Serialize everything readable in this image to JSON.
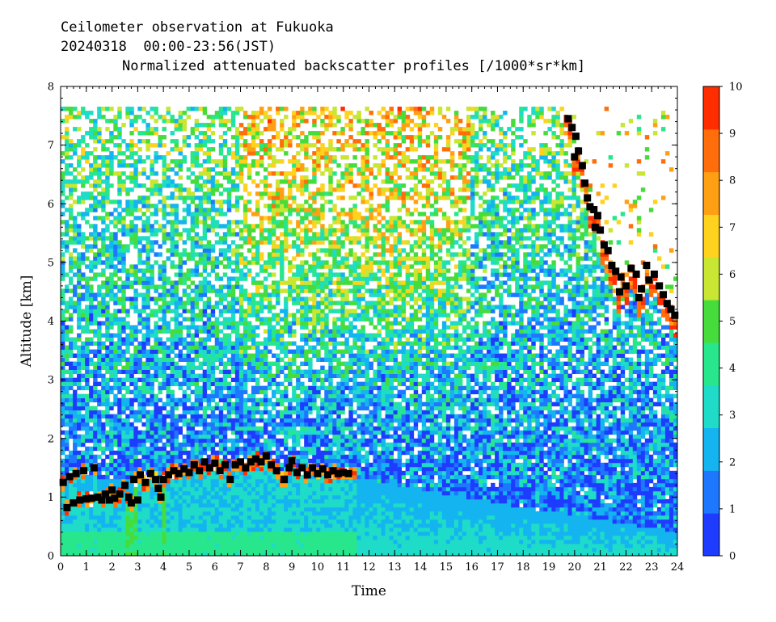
{
  "header": {
    "line1": "Ceilometer observation at Fukuoka",
    "line2": "20240318  00:00-23:56(JST)",
    "line3": "Normalized attenuated backscatter profiles [/1000*sr*km]"
  },
  "chart_data": {
    "type": "heatmap",
    "xlabel": "Time",
    "ylabel": "Altitude [km]",
    "xlim": [
      0,
      24
    ],
    "ylim": [
      0,
      8
    ],
    "x_ticks": [
      "0",
      "1",
      "2",
      "3",
      "4",
      "5",
      "6",
      "7",
      "8",
      "9",
      "10",
      "11",
      "12",
      "13",
      "14",
      "15",
      "16",
      "17",
      "18",
      "19",
      "20",
      "21",
      "22",
      "23",
      "24"
    ],
    "y_ticks": [
      "0",
      "1",
      "2",
      "3",
      "4",
      "5",
      "6",
      "7",
      "8"
    ],
    "colorbar": {
      "range": [
        0,
        10
      ],
      "ticks": [
        "0",
        "1",
        "2",
        "3",
        "4",
        "5",
        "6",
        "7",
        "8",
        "9",
        "10"
      ],
      "colors": [
        "#1e3cff",
        "#1e78ff",
        "#14b4f0",
        "#1edcc8",
        "#28e68c",
        "#46dc3c",
        "#c8e632",
        "#ffd21e",
        "#ffa014",
        "#ff6e0a",
        "#ff2d00"
      ]
    },
    "cloud_base_points": [
      {
        "x": 0.1,
        "y": 1.25
      },
      {
        "x": 0.25,
        "y": 0.82
      },
      {
        "x": 0.35,
        "y": 1.35
      },
      {
        "x": 0.5,
        "y": 0.9
      },
      {
        "x": 0.6,
        "y": 1.4
      },
      {
        "x": 0.75,
        "y": 0.95
      },
      {
        "x": 0.9,
        "y": 1.45
      },
      {
        "x": 1.0,
        "y": 0.97
      },
      {
        "x": 1.2,
        "y": 0.98
      },
      {
        "x": 1.3,
        "y": 1.5
      },
      {
        "x": 1.45,
        "y": 1.0
      },
      {
        "x": 1.6,
        "y": 0.95
      },
      {
        "x": 1.75,
        "y": 1.05
      },
      {
        "x": 1.9,
        "y": 0.95
      },
      {
        "x": 2.0,
        "y": 1.12
      },
      {
        "x": 2.1,
        "y": 0.98
      },
      {
        "x": 2.3,
        "y": 1.05
      },
      {
        "x": 2.5,
        "y": 1.2
      },
      {
        "x": 2.65,
        "y": 1.0
      },
      {
        "x": 2.75,
        "y": 0.9
      },
      {
        "x": 2.85,
        "y": 1.3
      },
      {
        "x": 3.0,
        "y": 0.95
      },
      {
        "x": 3.1,
        "y": 1.38
      },
      {
        "x": 3.3,
        "y": 1.25
      },
      {
        "x": 3.5,
        "y": 1.4
      },
      {
        "x": 3.7,
        "y": 1.3
      },
      {
        "x": 3.8,
        "y": 1.15
      },
      {
        "x": 3.9,
        "y": 1.0
      },
      {
        "x": 4.0,
        "y": 1.3
      },
      {
        "x": 4.2,
        "y": 1.38
      },
      {
        "x": 4.4,
        "y": 1.45
      },
      {
        "x": 4.6,
        "y": 1.4
      },
      {
        "x": 4.8,
        "y": 1.48
      },
      {
        "x": 5.0,
        "y": 1.42
      },
      {
        "x": 5.2,
        "y": 1.55
      },
      {
        "x": 5.4,
        "y": 1.45
      },
      {
        "x": 5.6,
        "y": 1.6
      },
      {
        "x": 5.8,
        "y": 1.5
      },
      {
        "x": 6.0,
        "y": 1.58
      },
      {
        "x": 6.2,
        "y": 1.45
      },
      {
        "x": 6.4,
        "y": 1.55
      },
      {
        "x": 6.6,
        "y": 1.3
      },
      {
        "x": 6.8,
        "y": 1.55
      },
      {
        "x": 7.0,
        "y": 1.6
      },
      {
        "x": 7.2,
        "y": 1.5
      },
      {
        "x": 7.4,
        "y": 1.6
      },
      {
        "x": 7.6,
        "y": 1.65
      },
      {
        "x": 7.8,
        "y": 1.6
      },
      {
        "x": 8.0,
        "y": 1.7
      },
      {
        "x": 8.2,
        "y": 1.55
      },
      {
        "x": 8.4,
        "y": 1.45
      },
      {
        "x": 8.7,
        "y": 1.3
      },
      {
        "x": 8.9,
        "y": 1.5
      },
      {
        "x": 9.0,
        "y": 1.62
      },
      {
        "x": 9.2,
        "y": 1.42
      },
      {
        "x": 9.4,
        "y": 1.5
      },
      {
        "x": 9.6,
        "y": 1.38
      },
      {
        "x": 9.8,
        "y": 1.5
      },
      {
        "x": 10.0,
        "y": 1.4
      },
      {
        "x": 10.2,
        "y": 1.48
      },
      {
        "x": 10.4,
        "y": 1.38
      },
      {
        "x": 10.6,
        "y": 1.45
      },
      {
        "x": 10.8,
        "y": 1.4
      },
      {
        "x": 11.0,
        "y": 1.42
      },
      {
        "x": 11.2,
        "y": 1.4
      },
      {
        "x": 19.75,
        "y": 7.45
      },
      {
        "x": 19.9,
        "y": 7.3
      },
      {
        "x": 20.05,
        "y": 7.15
      },
      {
        "x": 20.15,
        "y": 6.9
      },
      {
        "x": 20.0,
        "y": 6.8
      },
      {
        "x": 20.3,
        "y": 6.65
      },
      {
        "x": 20.4,
        "y": 6.35
      },
      {
        "x": 20.5,
        "y": 6.1
      },
      {
        "x": 20.6,
        "y": 5.95
      },
      {
        "x": 20.75,
        "y": 5.9
      },
      {
        "x": 20.9,
        "y": 5.8
      },
      {
        "x": 20.8,
        "y": 5.6
      },
      {
        "x": 21.0,
        "y": 5.55
      },
      {
        "x": 21.15,
        "y": 5.3
      },
      {
        "x": 21.3,
        "y": 5.2
      },
      {
        "x": 21.45,
        "y": 4.95
      },
      {
        "x": 21.6,
        "y": 4.85
      },
      {
        "x": 21.8,
        "y": 4.75
      },
      {
        "x": 22.0,
        "y": 4.6
      },
      {
        "x": 21.75,
        "y": 4.5
      },
      {
        "x": 22.2,
        "y": 4.9
      },
      {
        "x": 22.4,
        "y": 4.8
      },
      {
        "x": 22.6,
        "y": 4.55
      },
      {
        "x": 22.8,
        "y": 4.95
      },
      {
        "x": 22.9,
        "y": 4.7
      },
      {
        "x": 23.1,
        "y": 4.8
      },
      {
        "x": 22.5,
        "y": 4.4
      },
      {
        "x": 23.3,
        "y": 4.6
      },
      {
        "x": 23.45,
        "y": 4.45
      },
      {
        "x": 23.6,
        "y": 4.3
      },
      {
        "x": 23.75,
        "y": 4.2
      },
      {
        "x": 23.9,
        "y": 4.1
      }
    ]
  }
}
